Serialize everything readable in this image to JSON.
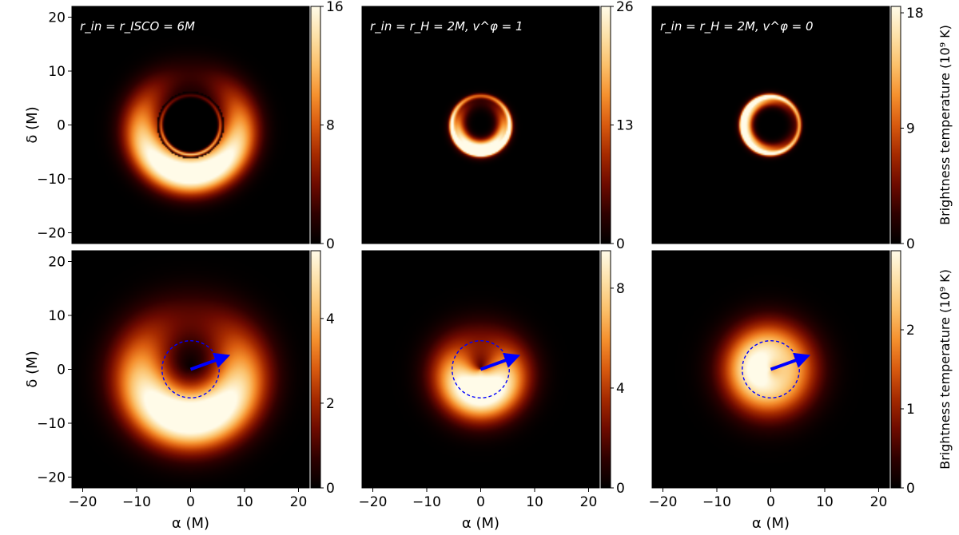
{
  "colormap": [
    "#000000",
    "#2e0000",
    "#6e0a00",
    "#a52a00",
    "#d85a0f",
    "#f5902e",
    "#fbc06a",
    "#fde1a8",
    "#fffbe8"
  ],
  "overlay_color": "#0000ff",
  "chart_data": [
    {
      "type": "heatmap",
      "panel": "top-left",
      "annotation": "r_in = r_ISCO = 6M",
      "ylabel": "δ (M)",
      "xlabel": "",
      "xlim": [
        -22,
        22
      ],
      "ylim": [
        -22,
        22
      ],
      "xticks": [],
      "yticks": [
        -20,
        -10,
        0,
        10,
        20
      ],
      "colorbar": {
        "range": [
          0,
          16
        ],
        "ticks": [
          0,
          8,
          16
        ],
        "label": ""
      },
      "image": {
        "shadow_radius": 6.2,
        "rings": [
          {
            "r": 9.0,
            "width": 2.6,
            "amp": 0.7,
            "bright_dir": "bottom",
            "contrast": 0.8
          },
          {
            "r": 5.5,
            "width": 0.25,
            "amp": 0.5,
            "bright_dir": "bottom",
            "contrast": 0.6
          }
        ]
      },
      "overlay": null
    },
    {
      "type": "heatmap",
      "panel": "top-middle",
      "annotation": "r_in = r_H = 2M, v^φ = 1",
      "ylabel": "",
      "xlabel": "",
      "xlim": [
        -22,
        22
      ],
      "ylim": [
        -22,
        22
      ],
      "xticks": [],
      "yticks": [],
      "colorbar": {
        "range": [
          0,
          26
        ],
        "ticks": [
          0,
          13,
          26
        ],
        "label": ""
      },
      "image": {
        "shadow_radius": 0,
        "rings": [
          {
            "r": 4.3,
            "width": 1.0,
            "amp": 0.65,
            "bright_dir": "bottom",
            "contrast": 0.8
          },
          {
            "r": 5.4,
            "width": 0.3,
            "amp": 0.8,
            "bright_dir": "bottom",
            "contrast": 0.4
          }
        ]
      },
      "overlay": null
    },
    {
      "type": "heatmap",
      "panel": "top-right",
      "annotation": "r_in = r_H = 2M, v^φ = 0",
      "ylabel": "",
      "xlabel": "",
      "xlim": [
        -22,
        22
      ],
      "ylim": [
        -22,
        22
      ],
      "xticks": [],
      "yticks": [],
      "colorbar": {
        "range": [
          0,
          18.5
        ],
        "ticks": [
          0,
          9,
          18
        ],
        "label": "Brightness temperature (10⁹ K)"
      },
      "image": {
        "shadow_radius": 0,
        "rings": [
          {
            "r": 4.6,
            "width": 0.8,
            "amp": 0.55,
            "bright_dir": "left",
            "contrast": 0.7
          },
          {
            "r": 5.3,
            "width": 0.3,
            "amp": 0.85,
            "bright_dir": "left",
            "contrast": 0.3
          }
        ]
      },
      "overlay": null
    },
    {
      "type": "heatmap",
      "panel": "bottom-left",
      "annotation": "",
      "ylabel": "δ (M)",
      "xlabel": "α (M)",
      "xlim": [
        -22,
        22
      ],
      "ylim": [
        -22,
        22
      ],
      "xticks": [
        -20,
        -10,
        0,
        10,
        20
      ],
      "yticks": [
        -20,
        -10,
        0,
        10,
        20
      ],
      "colorbar": {
        "range": [
          0,
          5.6
        ],
        "ticks": [
          0,
          2,
          4
        ],
        "label": ""
      },
      "image": {
        "shadow_radius": 0,
        "rings": [
          {
            "r": 9.0,
            "width": 4.0,
            "amp": 0.75,
            "bright_dir": "bottom",
            "contrast": 0.7
          }
        ]
      },
      "overlay": {
        "circle_center": [
          0,
          0
        ],
        "circle_radius": 5.3,
        "arrow_to": [
          5.8,
          2.1
        ]
      }
    },
    {
      "type": "heatmap",
      "panel": "bottom-middle",
      "annotation": "",
      "ylabel": "",
      "xlabel": "α (M)",
      "xlim": [
        -22,
        22
      ],
      "ylim": [
        -22,
        22
      ],
      "xticks": [
        -20,
        -10,
        0,
        10,
        20
      ],
      "yticks": [],
      "colorbar": {
        "range": [
          0,
          9.5
        ],
        "ticks": [
          0,
          4,
          8
        ],
        "label": ""
      },
      "image": {
        "shadow_radius": 0,
        "rings": [
          {
            "r": 4.0,
            "width": 3.6,
            "amp": 0.8,
            "bright_dir": "bottom",
            "contrast": 0.6
          }
        ]
      },
      "overlay": {
        "circle_center": [
          0,
          0
        ],
        "circle_radius": 5.3,
        "arrow_to": [
          5.8,
          2.1
        ]
      }
    },
    {
      "type": "heatmap",
      "panel": "bottom-right",
      "annotation": "",
      "ylabel": "",
      "xlabel": "α (M)",
      "xlim": [
        -22,
        22
      ],
      "ylim": [
        -22,
        22
      ],
      "xticks": [
        -20,
        -10,
        0,
        10,
        20
      ],
      "yticks": [],
      "colorbar": {
        "range": [
          0,
          3.0
        ],
        "ticks": [
          0,
          1,
          2
        ],
        "label": "Brightness temperature (10⁹ K)"
      },
      "image": {
        "shadow_radius": 0,
        "rings": [
          {
            "r": 2.5,
            "width": 4.2,
            "amp": 0.95,
            "bright_dir": "left",
            "contrast": 0.15
          }
        ]
      },
      "overlay": {
        "circle_center": [
          0,
          0
        ],
        "circle_radius": 5.3,
        "arrow_to": [
          5.8,
          2.1
        ]
      }
    }
  ]
}
